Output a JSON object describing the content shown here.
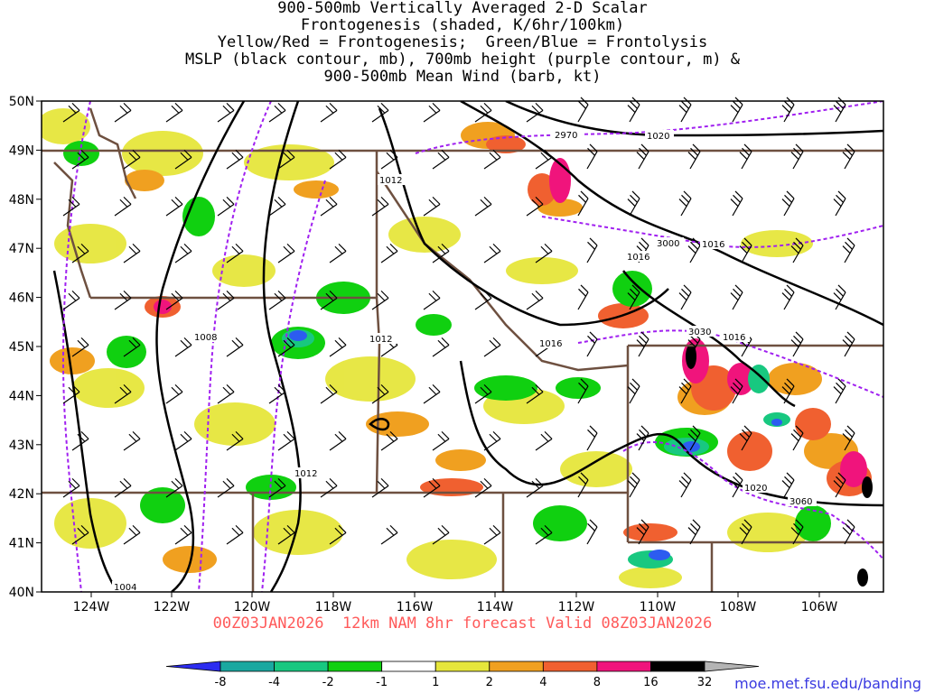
{
  "title": {
    "line1": "900-500mb Vertically Averaged 2-D Scalar",
    "line2": "Frontogenesis (shaded, K/6hr/100km)",
    "line3": "Yellow/Red = Frontogenesis;  Green/Blue = Frontolysis",
    "line4": "MSLP (black contour, mb), 700mb height (purple contour, m) &",
    "line5": "900-500mb Mean Wind (barb, kt)"
  },
  "lat_labels": [
    "50N",
    "49N",
    "48N",
    "47N",
    "46N",
    "45N",
    "44N",
    "43N",
    "42N",
    "41N",
    "40N"
  ],
  "lon_labels": [
    "124W",
    "122W",
    "120W",
    "118W",
    "116W",
    "114W",
    "112W",
    "110W",
    "108W",
    "106W"
  ],
  "contour_labels": {
    "mslp": [
      "1020",
      "1012",
      "1016",
      "1016",
      "1008",
      "1012",
      "1016",
      "1016",
      "1012",
      "1020",
      "1004"
    ],
    "height": [
      "2970",
      "3000",
      "3030",
      "3060"
    ]
  },
  "colorbar": {
    "labels": [
      "-8",
      "-4",
      "-2",
      "-1",
      "1",
      "2",
      "4",
      "8",
      "16",
      "32"
    ],
    "colors": [
      "#2c2cf0",
      "#1aa8a0",
      "#18c880",
      "#10d010",
      "#ffffff",
      "#e6e63c",
      "#f0a020",
      "#f06030",
      "#f0147c",
      "#000000",
      "#b4b4b4"
    ]
  },
  "forecast_text": "00Z03JAN2026  12km NAM 8hr forecast Valid 08Z03JAN2026",
  "credit_text": "moe.met.fsu.edu/banding",
  "colors": {
    "mslp_contour": "#000000",
    "height_contour": "#a020f0",
    "border": "#6e5040",
    "barb": "#000000"
  }
}
